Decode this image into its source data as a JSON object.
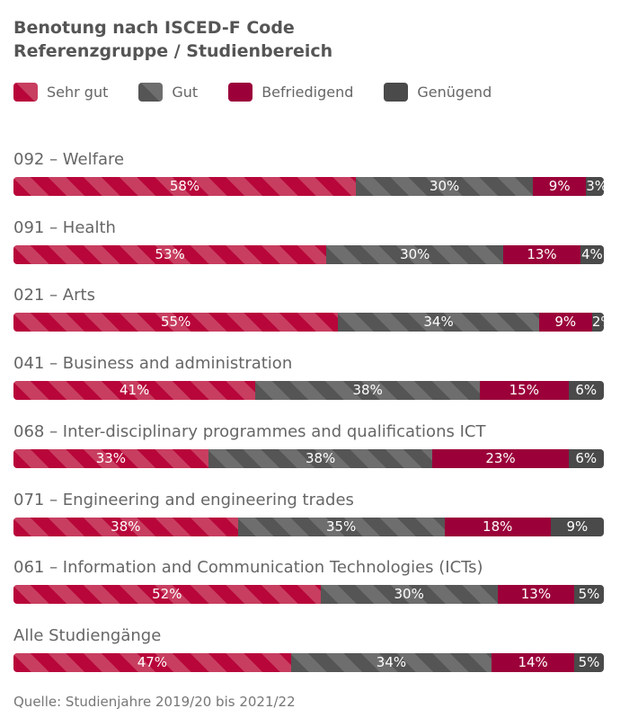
{
  "chart_data": {
    "type": "bar",
    "orientation": "horizontal",
    "stacked": true,
    "title": "Benotung nach ISCED-F Code",
    "subtitle": "Referenzgruppe / Studienbereich",
    "legend_position": "top-left",
    "unit": "%",
    "categories": [
      "092 – Welfare",
      "091 – Health",
      "021 – Arts",
      "041 – Business and administration",
      "068 – Inter-disciplinary programmes and qualifications ICT",
      "071 – Engineering and engineering trades",
      "061 – Information and Communication Technologies (ICTs)",
      "Alle Studiengänge"
    ],
    "series": [
      {
        "name": "Sehr gut",
        "color": "#b8063a",
        "stripe": "#c83e60",
        "values": [
          58,
          53,
          55,
          41,
          33,
          38,
          52,
          47
        ]
      },
      {
        "name": "Gut",
        "color": "#555555",
        "stripe": "#6e6e6e",
        "values": [
          30,
          30,
          34,
          38,
          38,
          35,
          30,
          34
        ]
      },
      {
        "name": "Befriedigend",
        "color": "#9b0039",
        "stripe": null,
        "values": [
          9,
          13,
          9,
          15,
          23,
          18,
          13,
          14
        ]
      },
      {
        "name": "Genügend",
        "color": "#4a4a4a",
        "stripe": null,
        "values": [
          3,
          4,
          2,
          6,
          6,
          9,
          5,
          5
        ]
      }
    ],
    "source": "Quelle: Studienjahre 2019/20 bis 2021/22"
  }
}
